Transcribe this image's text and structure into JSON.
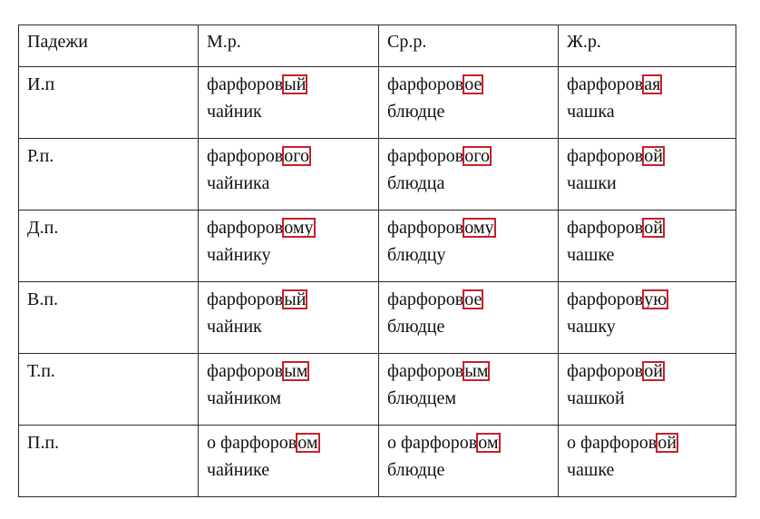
{
  "headers": [
    "Падежи",
    "М.р.",
    "Ср.р.",
    "Ж.р."
  ],
  "rows": [
    {
      "case": "И.п",
      "cells": [
        {
          "stem": "фарфоров",
          "ending": "ый",
          "noun": "чайник"
        },
        {
          "stem": "фарфоров",
          "ending": "ое",
          "noun": "блюдце"
        },
        {
          "stem": "фарфоров",
          "ending": "ая",
          "noun": "чашка"
        }
      ]
    },
    {
      "case": "Р.п.",
      "cells": [
        {
          "stem": "фарфоров",
          "ending": "ого",
          "noun": "чайника"
        },
        {
          "stem": "фарфоров",
          "ending": "ого",
          "noun": "блюдца"
        },
        {
          "stem": "фарфоров",
          "ending": "ой",
          "noun": "чашки"
        }
      ]
    },
    {
      "case": "Д.п.",
      "cells": [
        {
          "stem": "фарфоров",
          "ending": "ому",
          "noun": "чайнику"
        },
        {
          "stem": "фарфоров",
          "ending": "ому",
          "noun": "блюдцу"
        },
        {
          "stem": "фарфоров",
          "ending": "ой",
          "noun": "чашке"
        }
      ]
    },
    {
      "case": "В.п.",
      "cells": [
        {
          "stem": "фарфоров",
          "ending": "ый",
          "noun": "чайник"
        },
        {
          "stem": "фарфоров",
          "ending": "ое",
          "noun": "блюдце"
        },
        {
          "stem": "фарфоров",
          "ending": "ую",
          "noun": "чашку"
        }
      ]
    },
    {
      "case": "Т.п.",
      "cells": [
        {
          "stem": "фарфоров",
          "ending": "ым",
          "noun": "чайником"
        },
        {
          "stem": "фарфоров",
          "ending": "ым",
          "noun": "блюдцем"
        },
        {
          "stem": "фарфоров",
          "ending": "ой",
          "noun": "чашкой"
        }
      ]
    },
    {
      "case": "П.п.",
      "cells": [
        {
          "stem": "о фарфоров",
          "ending": "ом",
          "noun": "чайнике"
        },
        {
          "stem": "о фарфоров",
          "ending": "ом",
          "noun": "блюдце"
        },
        {
          "stem": "о фарфоров",
          "ending": "ой",
          "noun": "чашке"
        }
      ]
    }
  ],
  "colors": {
    "ending_box": "#c8202a",
    "border": "#2a2a2a",
    "text": "#111111"
  }
}
